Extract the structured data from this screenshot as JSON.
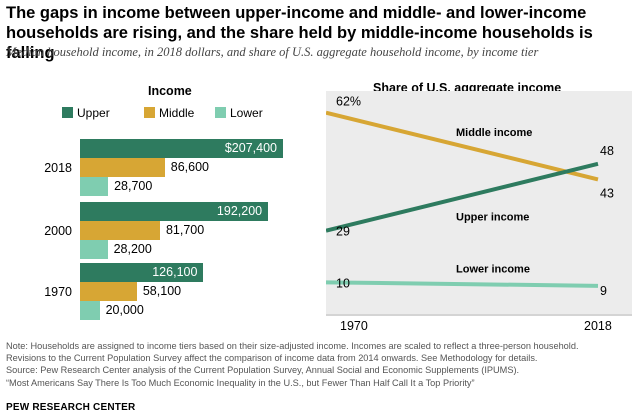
{
  "title": "The gaps in income between upper-income and middle- and lower-income households are rising, and the share held by middle-income households is falling",
  "subtitle": "Median household income, in 2018 dollars, and share of U.S. aggregate household income, by income tier",
  "colors": {
    "upper": "#2e7b5f",
    "middle": "#d7a634",
    "lower": "#7fcdb0",
    "panel_bg": "#ececec"
  },
  "chart_data": [
    {
      "type": "bar",
      "title": "Income",
      "legend": [
        "Upper",
        "Middle",
        "Lower"
      ],
      "legend_placement": "top",
      "categories": [
        "2018",
        "2000",
        "1970"
      ],
      "series": [
        {
          "name": "Upper",
          "values": [
            207400,
            192200,
            126100
          ],
          "labels": [
            "$207,400",
            "192,200",
            "126,100"
          ]
        },
        {
          "name": "Middle",
          "values": [
            86600,
            81700,
            58100
          ],
          "labels": [
            "86,600",
            "81,700",
            "58,100"
          ]
        },
        {
          "name": "Lower",
          "values": [
            28700,
            28200,
            20000
          ],
          "labels": [
            "28,700",
            "28,200",
            "20,000"
          ]
        }
      ],
      "xlim": [
        0,
        207400
      ]
    },
    {
      "type": "line",
      "title": "Share of U.S. aggregate income",
      "x": [
        1970,
        2018
      ],
      "x_tick_labels": [
        "1970",
        "2018"
      ],
      "ylim": [
        0,
        70
      ],
      "series": [
        {
          "name": "Middle income",
          "values": [
            62,
            43
          ],
          "start_label": "62%",
          "end_label": "43"
        },
        {
          "name": "Upper income",
          "values": [
            29,
            48
          ],
          "start_label": "29",
          "end_label": "48"
        },
        {
          "name": "Lower income",
          "values": [
            10,
            9
          ],
          "start_label": "10",
          "end_label": "9"
        }
      ]
    }
  ],
  "notes": [
    "Note: Households are assigned to income tiers based on their size-adjusted income. Incomes are scaled to reflect a three-person household.",
    "Revisions to the Current Population Survey affect the comparison of income data from 2014 onwards. See Methodology for details.",
    "Source: Pew Research Center analysis of the Current Population Survey, Annual Social and Economic Supplements (IPUMS).",
    "“Most Americans Say There Is Too Much Economic Inequality in the U.S., but Fewer Than Half Call It a Top Priority”"
  ],
  "brand": "PEW RESEARCH CENTER"
}
